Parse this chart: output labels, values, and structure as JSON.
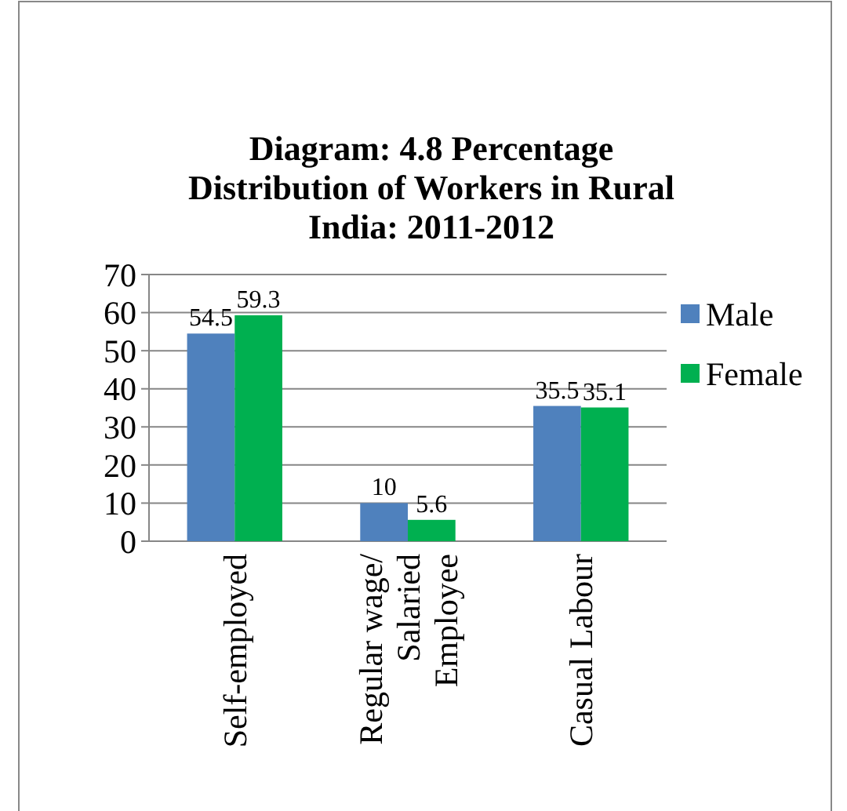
{
  "chart_data": {
    "type": "bar",
    "title": "Diagram: 4.8 Percentage Distribution of Workers in Rural India: 2011-2012",
    "categories": [
      "Self-employed",
      "Regular wage/ Salaried Employee",
      "Casual Labour"
    ],
    "series": [
      {
        "name": "Male",
        "color": "#4f81bd",
        "values": [
          54.5,
          10,
          35.5
        ]
      },
      {
        "name": "Female",
        "color": "#00b050",
        "values": [
          59.3,
          5.6,
          35.1
        ]
      }
    ],
    "ylim": [
      0,
      70
    ],
    "yticks": [
      0,
      10,
      20,
      30,
      40,
      50,
      60,
      70
    ],
    "grid": "y",
    "legend": "right",
    "data_labels": true
  }
}
